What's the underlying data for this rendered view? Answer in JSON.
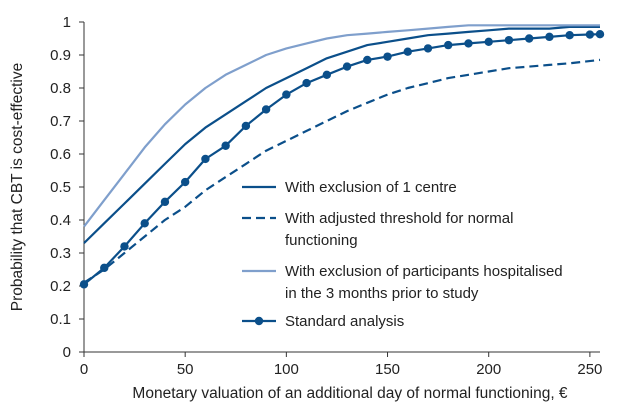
{
  "chart_data": {
    "type": "line",
    "title": "",
    "xlabel": "Monetary valuation of an additional day of normal functioning, €",
    "ylabel": "Probability that CBT is cost-effective",
    "xlim": [
      0,
      255
    ],
    "ylim": [
      0,
      1
    ],
    "x_ticks": [
      "0",
      "50",
      "100",
      "150",
      "200",
      "250"
    ],
    "y_ticks": [
      "0",
      "0.1",
      "0.2",
      "0.3",
      "0.4",
      "0.5",
      "0.6",
      "0.7",
      "0.8",
      "0.9",
      "1"
    ],
    "grid": false,
    "legend_position": "center-right",
    "series": [
      {
        "name": "With exclusion of 1 centre",
        "color": "#0b4f8a",
        "style": "solid",
        "marker": "none",
        "x": [
          0,
          10,
          20,
          30,
          40,
          50,
          60,
          70,
          80,
          90,
          100,
          110,
          120,
          130,
          140,
          150,
          160,
          170,
          180,
          190,
          200,
          210,
          220,
          230,
          240,
          255
        ],
        "y": [
          0.33,
          0.39,
          0.45,
          0.51,
          0.57,
          0.63,
          0.68,
          0.72,
          0.76,
          0.8,
          0.83,
          0.86,
          0.89,
          0.91,
          0.93,
          0.94,
          0.95,
          0.96,
          0.965,
          0.97,
          0.975,
          0.98,
          0.98,
          0.98,
          0.985,
          0.985
        ]
      },
      {
        "name": "With adjusted threshold for normal functioning",
        "color": "#0b4f8a",
        "style": "dashed",
        "marker": "none",
        "x": [
          0,
          10,
          20,
          30,
          40,
          50,
          60,
          70,
          80,
          90,
          100,
          110,
          120,
          130,
          140,
          150,
          160,
          170,
          180,
          190,
          200,
          210,
          220,
          230,
          240,
          255
        ],
        "y": [
          0.21,
          0.25,
          0.3,
          0.35,
          0.4,
          0.44,
          0.49,
          0.53,
          0.57,
          0.61,
          0.64,
          0.67,
          0.7,
          0.73,
          0.755,
          0.78,
          0.8,
          0.815,
          0.83,
          0.84,
          0.85,
          0.86,
          0.865,
          0.87,
          0.875,
          0.885
        ]
      },
      {
        "name": "With exclusion of participants hospitalised in the 3 months prior to study",
        "color": "#7f9fcc",
        "style": "solid",
        "marker": "none",
        "x": [
          0,
          10,
          20,
          30,
          40,
          50,
          60,
          70,
          80,
          90,
          100,
          110,
          120,
          130,
          140,
          150,
          160,
          170,
          180,
          190,
          200,
          210,
          220,
          230,
          240,
          255
        ],
        "y": [
          0.38,
          0.46,
          0.54,
          0.62,
          0.69,
          0.75,
          0.8,
          0.84,
          0.87,
          0.9,
          0.92,
          0.935,
          0.95,
          0.96,
          0.965,
          0.97,
          0.975,
          0.98,
          0.985,
          0.99,
          0.99,
          0.99,
          0.99,
          0.99,
          0.99,
          0.99
        ]
      },
      {
        "name": "Standard analysis",
        "color": "#0b4f8a",
        "style": "solid",
        "marker": "circle",
        "x": [
          0,
          10,
          20,
          30,
          40,
          50,
          60,
          70,
          80,
          90,
          100,
          110,
          120,
          130,
          140,
          150,
          160,
          170,
          180,
          190,
          200,
          210,
          220,
          230,
          240,
          250,
          255
        ],
        "y": [
          0.205,
          0.255,
          0.32,
          0.39,
          0.455,
          0.515,
          0.585,
          0.625,
          0.685,
          0.735,
          0.78,
          0.815,
          0.84,
          0.865,
          0.885,
          0.895,
          0.91,
          0.92,
          0.93,
          0.935,
          0.94,
          0.945,
          0.95,
          0.955,
          0.96,
          0.962,
          0.963
        ]
      }
    ]
  }
}
